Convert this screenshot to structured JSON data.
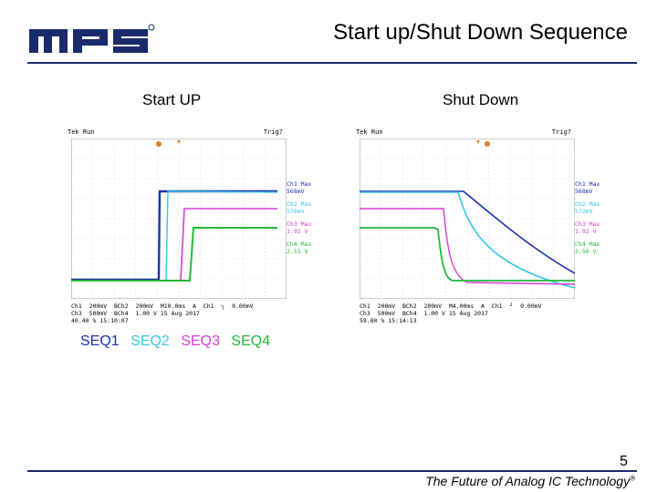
{
  "header": {
    "logo_text": "mps",
    "title": "Start up/Shut Down Sequence"
  },
  "panels": [
    {
      "heading": "Start UP",
      "scope": {
        "status": "Tek Run",
        "trigger": "Trig?",
        "measurements": [
          {
            "label": "Ch1 Max",
            "value": "568mV"
          },
          {
            "label": "Ch2 Max",
            "value": "576mV"
          },
          {
            "label": "Ch3 Max",
            "value": "1.92 V"
          },
          {
            "label": "Ch4 Max",
            "value": "2.51 V"
          }
        ],
        "footer_line1": "Ch1  200mV  BCh2  200mV  M10.0ms  A  Ch1  ┐  0.00mV",
        "footer_line2": "Ch3  500mV  BCh4  1.00 V",
        "footer_line3": "40.40 %",
        "date": "15 Aug 2017",
        "time": "15:10:07"
      }
    },
    {
      "heading": "Shut Down",
      "scope": {
        "status": "Tek Run",
        "trigger": "Trig?",
        "measurements": [
          {
            "label": "Ch1 Max",
            "value": "568mV"
          },
          {
            "label": "Ch2 Max",
            "value": "572mV"
          },
          {
            "label": "Ch3 Max",
            "value": "1.92 V"
          },
          {
            "label": "Ch4 Max",
            "value": "2.50 V"
          }
        ],
        "footer_line1": "Ch1  200mV  BCh2  200mV  M4.00ms  A  Ch1  ┘  0.00mV",
        "footer_line2": "Ch3  500mV  BCh4  1.00 V",
        "footer_line3": "59.80 %",
        "date": "15 Aug 2017",
        "time": "15:14:13"
      }
    }
  ],
  "legend": [
    {
      "label": "SEQ1",
      "color": "#1f2fa8"
    },
    {
      "label": "SEQ2",
      "color": "#36c8e8"
    },
    {
      "label": "SEQ3",
      "color": "#d63cd8"
    },
    {
      "label": "SEQ4",
      "color": "#22b83a"
    }
  ],
  "footer": {
    "page_number": "5",
    "tagline": "The Future of Analog IC Technology",
    "trademark": "®"
  }
}
